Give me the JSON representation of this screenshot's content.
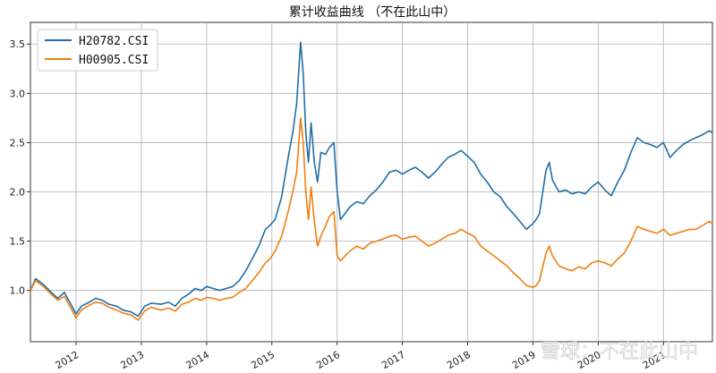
{
  "chart_data": {
    "type": "line",
    "title": "累计收益曲线 （不在此山中）",
    "xlabel": "",
    "ylabel": "",
    "ylim": [
      0.48,
      3.72
    ],
    "xlim": [
      2011.3,
      2021.75
    ],
    "x_ticks": [
      {
        "value": 2012,
        "label": "2012"
      },
      {
        "value": 2013,
        "label": "2013"
      },
      {
        "value": 2014,
        "label": "2014"
      },
      {
        "value": 2015,
        "label": "2015"
      },
      {
        "value": 2016,
        "label": "2016"
      },
      {
        "value": 2017,
        "label": "2017"
      },
      {
        "value": 2018,
        "label": "2018"
      },
      {
        "value": 2019,
        "label": "2019"
      },
      {
        "value": 2020,
        "label": "2020"
      },
      {
        "value": 2021,
        "label": "2021"
      }
    ],
    "y_ticks": [
      {
        "value": 1.0,
        "label": "1.0"
      },
      {
        "value": 1.5,
        "label": "1.5"
      },
      {
        "value": 2.0,
        "label": "2.0"
      },
      {
        "value": 2.5,
        "label": "2.5"
      },
      {
        "value": 3.0,
        "label": "3.0"
      },
      {
        "value": 3.5,
        "label": "3.5"
      }
    ],
    "grid": true,
    "legend_position": "top-left",
    "series": [
      {
        "name": "H20782.CSI",
        "color": "#1f6fa8",
        "points": [
          [
            2011.3,
            1.0
          ],
          [
            2011.38,
            1.12
          ],
          [
            2011.5,
            1.06
          ],
          [
            2011.62,
            0.98
          ],
          [
            2011.72,
            0.92
          ],
          [
            2011.82,
            0.98
          ],
          [
            2011.92,
            0.86
          ],
          [
            2012.0,
            0.76
          ],
          [
            2012.08,
            0.84
          ],
          [
            2012.2,
            0.88
          ],
          [
            2012.3,
            0.92
          ],
          [
            2012.4,
            0.9
          ],
          [
            2012.5,
            0.86
          ],
          [
            2012.62,
            0.84
          ],
          [
            2012.72,
            0.8
          ],
          [
            2012.85,
            0.78
          ],
          [
            2012.95,
            0.74
          ],
          [
            2013.05,
            0.84
          ],
          [
            2013.15,
            0.87
          ],
          [
            2013.3,
            0.86
          ],
          [
            2013.42,
            0.88
          ],
          [
            2013.52,
            0.84
          ],
          [
            2013.62,
            0.92
          ],
          [
            2013.72,
            0.96
          ],
          [
            2013.82,
            1.02
          ],
          [
            2013.92,
            1.0
          ],
          [
            2014.0,
            1.04
          ],
          [
            2014.1,
            1.02
          ],
          [
            2014.2,
            1.0
          ],
          [
            2014.3,
            1.02
          ],
          [
            2014.4,
            1.04
          ],
          [
            2014.5,
            1.1
          ],
          [
            2014.6,
            1.2
          ],
          [
            2014.7,
            1.32
          ],
          [
            2014.8,
            1.45
          ],
          [
            2014.9,
            1.62
          ],
          [
            2014.97,
            1.66
          ],
          [
            2015.05,
            1.72
          ],
          [
            2015.15,
            1.95
          ],
          [
            2015.25,
            2.35
          ],
          [
            2015.32,
            2.6
          ],
          [
            2015.38,
            2.9
          ],
          [
            2015.44,
            3.52
          ],
          [
            2015.48,
            3.2
          ],
          [
            2015.52,
            2.6
          ],
          [
            2015.56,
            2.3
          ],
          [
            2015.6,
            2.7
          ],
          [
            2015.65,
            2.3
          ],
          [
            2015.7,
            2.1
          ],
          [
            2015.75,
            2.4
          ],
          [
            2015.82,
            2.38
          ],
          [
            2015.88,
            2.45
          ],
          [
            2015.95,
            2.5
          ],
          [
            2016.0,
            2.0
          ],
          [
            2016.05,
            1.72
          ],
          [
            2016.12,
            1.78
          ],
          [
            2016.2,
            1.85
          ],
          [
            2016.3,
            1.9
          ],
          [
            2016.4,
            1.88
          ],
          [
            2016.5,
            1.96
          ],
          [
            2016.6,
            2.02
          ],
          [
            2016.7,
            2.1
          ],
          [
            2016.8,
            2.2
          ],
          [
            2016.9,
            2.22
          ],
          [
            2017.0,
            2.18
          ],
          [
            2017.1,
            2.22
          ],
          [
            2017.2,
            2.25
          ],
          [
            2017.3,
            2.2
          ],
          [
            2017.4,
            2.14
          ],
          [
            2017.5,
            2.2
          ],
          [
            2017.6,
            2.28
          ],
          [
            2017.7,
            2.35
          ],
          [
            2017.8,
            2.38
          ],
          [
            2017.9,
            2.42
          ],
          [
            2018.0,
            2.36
          ],
          [
            2018.1,
            2.3
          ],
          [
            2018.2,
            2.18
          ],
          [
            2018.3,
            2.1
          ],
          [
            2018.4,
            2.0
          ],
          [
            2018.5,
            1.95
          ],
          [
            2018.6,
            1.85
          ],
          [
            2018.7,
            1.78
          ],
          [
            2018.8,
            1.7
          ],
          [
            2018.9,
            1.62
          ],
          [
            2019.0,
            1.68
          ],
          [
            2019.05,
            1.72
          ],
          [
            2019.1,
            1.78
          ],
          [
            2019.2,
            2.22
          ],
          [
            2019.25,
            2.3
          ],
          [
            2019.3,
            2.12
          ],
          [
            2019.4,
            2.0
          ],
          [
            2019.5,
            2.02
          ],
          [
            2019.6,
            1.98
          ],
          [
            2019.7,
            2.0
          ],
          [
            2019.8,
            1.98
          ],
          [
            2019.9,
            2.05
          ],
          [
            2020.0,
            2.1
          ],
          [
            2020.1,
            2.02
          ],
          [
            2020.2,
            1.96
          ],
          [
            2020.3,
            2.1
          ],
          [
            2020.4,
            2.22
          ],
          [
            2020.5,
            2.4
          ],
          [
            2020.6,
            2.55
          ],
          [
            2020.7,
            2.5
          ],
          [
            2020.8,
            2.48
          ],
          [
            2020.9,
            2.45
          ],
          [
            2021.0,
            2.5
          ],
          [
            2021.1,
            2.35
          ],
          [
            2021.2,
            2.42
          ],
          [
            2021.3,
            2.48
          ],
          [
            2021.4,
            2.52
          ],
          [
            2021.5,
            2.55
          ],
          [
            2021.6,
            2.58
          ],
          [
            2021.7,
            2.62
          ],
          [
            2021.75,
            2.6
          ]
        ]
      },
      {
        "name": "H00905.CSI",
        "color": "#f07f0f",
        "points": [
          [
            2011.3,
            1.0
          ],
          [
            2011.38,
            1.1
          ],
          [
            2011.5,
            1.04
          ],
          [
            2011.62,
            0.96
          ],
          [
            2011.72,
            0.9
          ],
          [
            2011.82,
            0.94
          ],
          [
            2011.92,
            0.82
          ],
          [
            2012.0,
            0.72
          ],
          [
            2012.08,
            0.8
          ],
          [
            2012.2,
            0.85
          ],
          [
            2012.3,
            0.88
          ],
          [
            2012.4,
            0.87
          ],
          [
            2012.5,
            0.83
          ],
          [
            2012.62,
            0.8
          ],
          [
            2012.72,
            0.77
          ],
          [
            2012.85,
            0.75
          ],
          [
            2012.95,
            0.7
          ],
          [
            2013.05,
            0.79
          ],
          [
            2013.15,
            0.83
          ],
          [
            2013.3,
            0.8
          ],
          [
            2013.42,
            0.82
          ],
          [
            2013.52,
            0.79
          ],
          [
            2013.62,
            0.86
          ],
          [
            2013.72,
            0.88
          ],
          [
            2013.82,
            0.92
          ],
          [
            2013.92,
            0.9
          ],
          [
            2014.0,
            0.93
          ],
          [
            2014.1,
            0.92
          ],
          [
            2014.2,
            0.9
          ],
          [
            2014.3,
            0.92
          ],
          [
            2014.4,
            0.93
          ],
          [
            2014.5,
            0.98
          ],
          [
            2014.6,
            1.02
          ],
          [
            2014.7,
            1.1
          ],
          [
            2014.8,
            1.18
          ],
          [
            2014.9,
            1.28
          ],
          [
            2014.97,
            1.32
          ],
          [
            2015.05,
            1.4
          ],
          [
            2015.15,
            1.55
          ],
          [
            2015.25,
            1.8
          ],
          [
            2015.32,
            2.0
          ],
          [
            2015.38,
            2.2
          ],
          [
            2015.44,
            2.75
          ],
          [
            2015.48,
            2.5
          ],
          [
            2015.52,
            2.0
          ],
          [
            2015.56,
            1.72
          ],
          [
            2015.6,
            2.05
          ],
          [
            2015.65,
            1.7
          ],
          [
            2015.7,
            1.45
          ],
          [
            2015.75,
            1.55
          ],
          [
            2015.82,
            1.65
          ],
          [
            2015.88,
            1.75
          ],
          [
            2015.95,
            1.8
          ],
          [
            2016.0,
            1.35
          ],
          [
            2016.05,
            1.3
          ],
          [
            2016.12,
            1.35
          ],
          [
            2016.2,
            1.4
          ],
          [
            2016.3,
            1.45
          ],
          [
            2016.4,
            1.42
          ],
          [
            2016.5,
            1.48
          ],
          [
            2016.6,
            1.5
          ],
          [
            2016.7,
            1.52
          ],
          [
            2016.8,
            1.55
          ],
          [
            2016.9,
            1.56
          ],
          [
            2017.0,
            1.52
          ],
          [
            2017.1,
            1.54
          ],
          [
            2017.2,
            1.55
          ],
          [
            2017.3,
            1.5
          ],
          [
            2017.4,
            1.45
          ],
          [
            2017.5,
            1.48
          ],
          [
            2017.6,
            1.52
          ],
          [
            2017.7,
            1.56
          ],
          [
            2017.8,
            1.58
          ],
          [
            2017.9,
            1.62
          ],
          [
            2018.0,
            1.58
          ],
          [
            2018.1,
            1.55
          ],
          [
            2018.2,
            1.45
          ],
          [
            2018.3,
            1.4
          ],
          [
            2018.4,
            1.35
          ],
          [
            2018.5,
            1.3
          ],
          [
            2018.6,
            1.25
          ],
          [
            2018.7,
            1.18
          ],
          [
            2018.8,
            1.12
          ],
          [
            2018.9,
            1.05
          ],
          [
            2019.0,
            1.03
          ],
          [
            2019.05,
            1.05
          ],
          [
            2019.1,
            1.1
          ],
          [
            2019.2,
            1.38
          ],
          [
            2019.25,
            1.45
          ],
          [
            2019.3,
            1.35
          ],
          [
            2019.4,
            1.25
          ],
          [
            2019.5,
            1.22
          ],
          [
            2019.6,
            1.2
          ],
          [
            2019.7,
            1.24
          ],
          [
            2019.8,
            1.22
          ],
          [
            2019.9,
            1.28
          ],
          [
            2020.0,
            1.3
          ],
          [
            2020.1,
            1.28
          ],
          [
            2020.2,
            1.25
          ],
          [
            2020.3,
            1.32
          ],
          [
            2020.4,
            1.38
          ],
          [
            2020.5,
            1.5
          ],
          [
            2020.6,
            1.65
          ],
          [
            2020.7,
            1.62
          ],
          [
            2020.8,
            1.6
          ],
          [
            2020.9,
            1.58
          ],
          [
            2021.0,
            1.62
          ],
          [
            2021.1,
            1.56
          ],
          [
            2021.2,
            1.58
          ],
          [
            2021.3,
            1.6
          ],
          [
            2021.4,
            1.62
          ],
          [
            2021.5,
            1.62
          ],
          [
            2021.6,
            1.66
          ],
          [
            2021.7,
            1.7
          ],
          [
            2021.75,
            1.68
          ]
        ]
      }
    ]
  },
  "watermark": {
    "text": "雪球：不在此山中"
  }
}
